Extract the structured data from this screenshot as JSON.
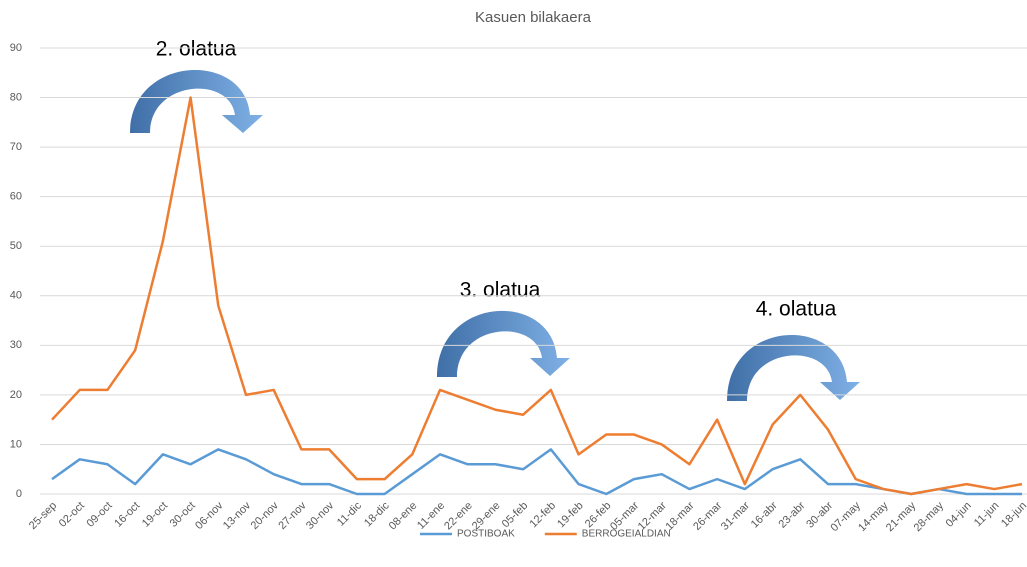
{
  "chart_data": {
    "type": "line",
    "title": "Kasuen bilakaera",
    "categories": [
      "25-sep",
      "02-oct",
      "09-oct",
      "16-oct",
      "19-oct",
      "30-oct",
      "06-nov",
      "13-nov",
      "20-nov",
      "27-nov",
      "30-nov",
      "11-dic",
      "18-dic",
      "08-ene",
      "11-ene",
      "22-ene",
      "29-ene",
      "05-feb",
      "12-feb",
      "19-feb",
      "26-feb",
      "05-mar",
      "12-mar",
      "18-mar",
      "26-mar",
      "31-mar",
      "16-abr",
      "23-abr",
      "30-abr",
      "07-may",
      "14-may",
      "21-may",
      "28-may",
      "04-jun",
      "11-jun",
      "18-jun"
    ],
    "series": [
      {
        "name": "POSTIBOAK",
        "color": "#5b9bd5",
        "values": [
          3,
          7,
          6,
          2,
          8,
          6,
          9,
          7,
          4,
          2,
          2,
          0,
          0,
          4,
          8,
          6,
          6,
          5,
          9,
          2,
          0,
          3,
          4,
          1,
          3,
          1,
          5,
          7,
          2,
          2,
          1,
          0,
          1,
          0,
          0,
          0
        ]
      },
      {
        "name": "BERROGEIALDIAN",
        "color": "#ed7d31",
        "values": [
          15,
          21,
          21,
          29,
          51,
          80,
          38,
          20,
          21,
          9,
          9,
          3,
          3,
          8,
          21,
          19,
          17,
          16,
          21,
          8,
          12,
          12,
          10,
          6,
          15,
          2,
          14,
          20,
          13,
          3,
          1,
          0,
          1,
          2,
          1,
          2
        ]
      }
    ],
    "ylim": [
      0,
      90
    ],
    "yticks": [
      0,
      10,
      20,
      30,
      40,
      50,
      60,
      70,
      80,
      90
    ],
    "grid": true,
    "legend": "bottom",
    "annotations": [
      "2. olatua",
      "3. olatua",
      "4. olatua"
    ]
  }
}
